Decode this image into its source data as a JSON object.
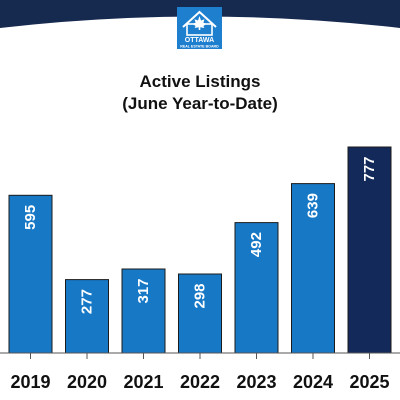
{
  "header": {
    "logo": {
      "icon": "maple-leaf-house-icon",
      "word": "OTTAWA",
      "tagline": "REAL ESTATE BOARD"
    }
  },
  "colors": {
    "banner": "#16294f",
    "bar": "#1778c6",
    "bar_highlight": "#13295a",
    "bar_outline": "#1b1b1b",
    "logo_bg": "#1f7fcf"
  },
  "chart_data": {
    "type": "bar",
    "title": "Active Listings",
    "subtitle": "(June Year-to-Date)",
    "categories": [
      "2019",
      "2020",
      "2021",
      "2022",
      "2023",
      "2024",
      "2025"
    ],
    "values": [
      595,
      277,
      317,
      298,
      492,
      639,
      777
    ],
    "highlight_category": "2025",
    "ylim": [
      0,
      777
    ],
    "y_axis_visible": false,
    "grid": false,
    "data_labels": "inside-top, rotated"
  }
}
